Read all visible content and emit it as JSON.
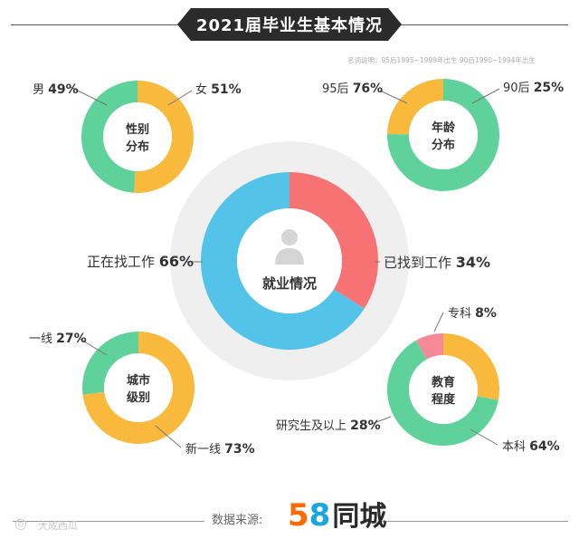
{
  "header": {
    "title": "2021届毕业生基本情况",
    "note": "名词说明：95后1995~1999年出生 90后1990~1994年出生"
  },
  "footer": {
    "source_label": "数据来源:",
    "logo_5": "5",
    "logo_8": "8",
    "logo_text": "同城",
    "watermark": "大成西瓜"
  },
  "colors": {
    "green": "#5fd29b",
    "yellow": "#f9b93c",
    "blue": "#53c3ea",
    "red": "#f77272",
    "pink": "#f58a96",
    "halo": "#efefef",
    "person": "#d5d5d5"
  },
  "chart_data": [
    {
      "type": "pie",
      "id": "gender",
      "center_label": [
        "性别",
        "分布"
      ],
      "slices": [
        {
          "label": "男",
          "value": 49,
          "pct": "49%",
          "color": "#5fd29b"
        },
        {
          "label": "女",
          "value": 51,
          "pct": "51%",
          "color": "#f9b93c"
        }
      ]
    },
    {
      "type": "pie",
      "id": "age",
      "center_label": [
        "年龄",
        "分布"
      ],
      "slices": [
        {
          "label": "95后",
          "value": 76,
          "pct": "76%",
          "color": "#5fd29b"
        },
        {
          "label": "90后",
          "value": 25,
          "pct": "25%",
          "color": "#f9b93c"
        }
      ]
    },
    {
      "type": "pie",
      "id": "employment",
      "center_label": [
        "就业情况"
      ],
      "slices": [
        {
          "label": "正在找工作",
          "value": 66,
          "pct": "66%",
          "color": "#53c3ea"
        },
        {
          "label": "已找到工作",
          "value": 34,
          "pct": "34%",
          "color": "#f77272"
        }
      ]
    },
    {
      "type": "pie",
      "id": "city",
      "center_label": [
        "城市",
        "级别"
      ],
      "slices": [
        {
          "label": "一线",
          "value": 27,
          "pct": "27%",
          "color": "#5fd29b"
        },
        {
          "label": "新一线",
          "value": 73,
          "pct": "73%",
          "color": "#f9b93c"
        }
      ]
    },
    {
      "type": "pie",
      "id": "education",
      "center_label": [
        "教育",
        "程度"
      ],
      "slices": [
        {
          "label": "专科",
          "value": 8,
          "pct": "8%",
          "color": "#f58a96"
        },
        {
          "label": "本科",
          "value": 64,
          "pct": "64%",
          "color": "#5fd29b"
        },
        {
          "label": "研究生及以上",
          "value": 28,
          "pct": "28%",
          "color": "#f9b93c"
        }
      ]
    }
  ]
}
